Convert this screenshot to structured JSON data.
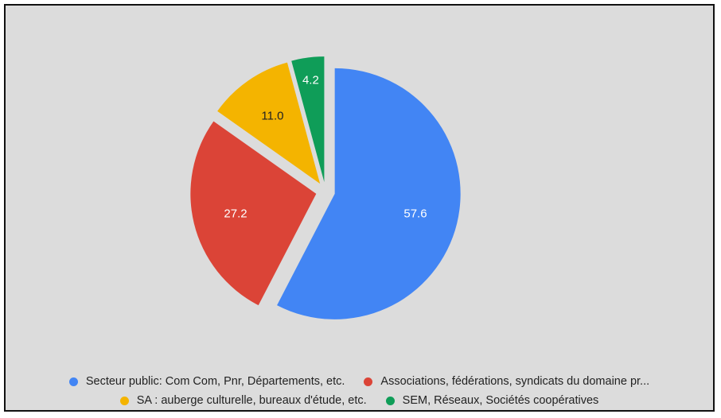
{
  "chart_data": {
    "type": "pie",
    "title": "",
    "start_angle_deg": 0,
    "direction": "clockwise",
    "exploded": true,
    "legend_position": "bottom",
    "slices": [
      {
        "label": "Secteur public: Com Com, Pnr, Départements, etc.",
        "value": 57.6,
        "display": "57.6",
        "color": "#4285f4",
        "label_color": "#ffffff"
      },
      {
        "label": "Associations, fédérations, syndicats du domaine pr...",
        "value": 27.2,
        "display": "27.2",
        "color": "#db4437",
        "label_color": "#ffffff"
      },
      {
        "label": "SA : auberge culturelle, bureaux d'étude, etc.",
        "value": 11.0,
        "display": "11.0",
        "color": "#f4b400",
        "label_color": "#222222"
      },
      {
        "label": "SEM, Réseaux, Sociétés coopératives",
        "value": 4.2,
        "display": "4.2",
        "color": "#0f9d58",
        "label_color": "#ffffff"
      }
    ]
  }
}
